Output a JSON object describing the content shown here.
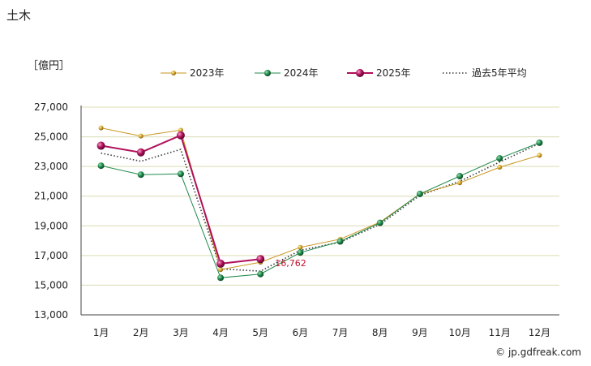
{
  "page": {
    "title": "土木",
    "unit_label": "［億円］",
    "credit": "© jp.gdfreak.com"
  },
  "chart_data": {
    "type": "line",
    "categories": [
      "1月",
      "2月",
      "3月",
      "4月",
      "5月",
      "6月",
      "7月",
      "8月",
      "9月",
      "10月",
      "11月",
      "12月"
    ],
    "ylim": [
      13000,
      27000
    ],
    "yticks": [
      13000,
      15000,
      17000,
      19000,
      21000,
      23000,
      25000,
      27000
    ],
    "ytick_labels": [
      "13,000",
      "15,000",
      "17,000",
      "19,000",
      "21,000",
      "23,000",
      "25,000",
      "27,000"
    ],
    "grid": true,
    "legend_position": "top",
    "series": [
      {
        "name": "2023年",
        "color": "#c8961e",
        "style": "solid",
        "marker": "small",
        "values": [
          25600,
          25050,
          25450,
          16050,
          16550,
          17550,
          18100,
          19250,
          21150,
          21900,
          22950,
          23750
        ]
      },
      {
        "name": "2024年",
        "color": "#1f8a4c",
        "style": "solid",
        "marker": "medium",
        "values": [
          23050,
          22450,
          22500,
          15500,
          15750,
          17200,
          17950,
          19200,
          21150,
          22350,
          23550,
          24600
        ]
      },
      {
        "name": "2025年",
        "color": "#b0105a",
        "style": "solid",
        "marker": "large",
        "values": [
          24400,
          23950,
          25100,
          16450,
          16762,
          null,
          null,
          null,
          null,
          null,
          null,
          null
        ]
      },
      {
        "name": "過去5年平均",
        "color": "#3a3a3a",
        "style": "dotted",
        "marker": "none",
        "values": [
          23900,
          23350,
          24150,
          16100,
          15950,
          17350,
          17900,
          19100,
          21050,
          22000,
          23300,
          24550
        ]
      }
    ],
    "annotation": {
      "label": "16,762",
      "category": "5月",
      "value": 16762,
      "color": "#c0102a"
    }
  }
}
